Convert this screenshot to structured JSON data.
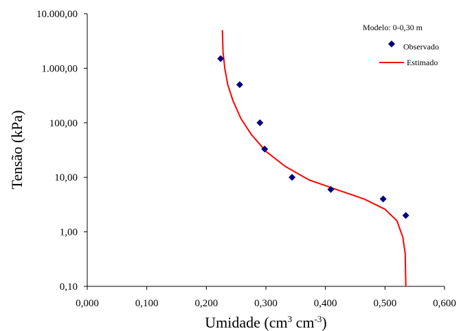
{
  "chart_data": {
    "type": "scatter",
    "annotation": "Modelo: 0-0,30 m",
    "xlabel": "Umidade (cm³ cm⁻³)",
    "xlabel_parts": {
      "base": "Umidade (cm",
      "sup1": "3",
      "mid": " cm",
      "sup2": "-3",
      "end": ")"
    },
    "ylabel": "Tensão (kPa)",
    "xlim": [
      0,
      0.6
    ],
    "ylim": [
      0.1,
      10000
    ],
    "y_scale": "log",
    "x_ticks": [
      "0,000",
      "0,100",
      "0,200",
      "0,300",
      "0,400",
      "0,500",
      "0,600"
    ],
    "y_ticks": [
      "0,10",
      "1,00",
      "10,00",
      "100,00",
      "1.000,00",
      "10.000,00"
    ],
    "grid": false,
    "legend_position": "top-right",
    "series": [
      {
        "name": "Observado",
        "kind": "scatter",
        "marker": "diamond",
        "color": "#00007f",
        "points": [
          {
            "x": 0.224,
            "y": 1500
          },
          {
            "x": 0.256,
            "y": 500
          },
          {
            "x": 0.29,
            "y": 100
          },
          {
            "x": 0.298,
            "y": 33
          },
          {
            "x": 0.344,
            "y": 10
          },
          {
            "x": 0.409,
            "y": 6
          },
          {
            "x": 0.497,
            "y": 4
          },
          {
            "x": 0.535,
            "y": 2
          }
        ]
      },
      {
        "name": "Estimado",
        "kind": "line",
        "color": "#ff0000",
        "points": [
          {
            "x": 0.227,
            "y": 5000
          },
          {
            "x": 0.228,
            "y": 2000
          },
          {
            "x": 0.231,
            "y": 1000
          },
          {
            "x": 0.236,
            "y": 500
          },
          {
            "x": 0.245,
            "y": 250
          },
          {
            "x": 0.258,
            "y": 120
          },
          {
            "x": 0.276,
            "y": 60
          },
          {
            "x": 0.3,
            "y": 30
          },
          {
            "x": 0.332,
            "y": 16
          },
          {
            "x": 0.372,
            "y": 9
          },
          {
            "x": 0.418,
            "y": 6
          },
          {
            "x": 0.465,
            "y": 4
          },
          {
            "x": 0.5,
            "y": 2.6
          },
          {
            "x": 0.52,
            "y": 1.6
          },
          {
            "x": 0.53,
            "y": 0.8
          },
          {
            "x": 0.534,
            "y": 0.4
          },
          {
            "x": 0.535,
            "y": 0.1
          }
        ]
      }
    ]
  }
}
